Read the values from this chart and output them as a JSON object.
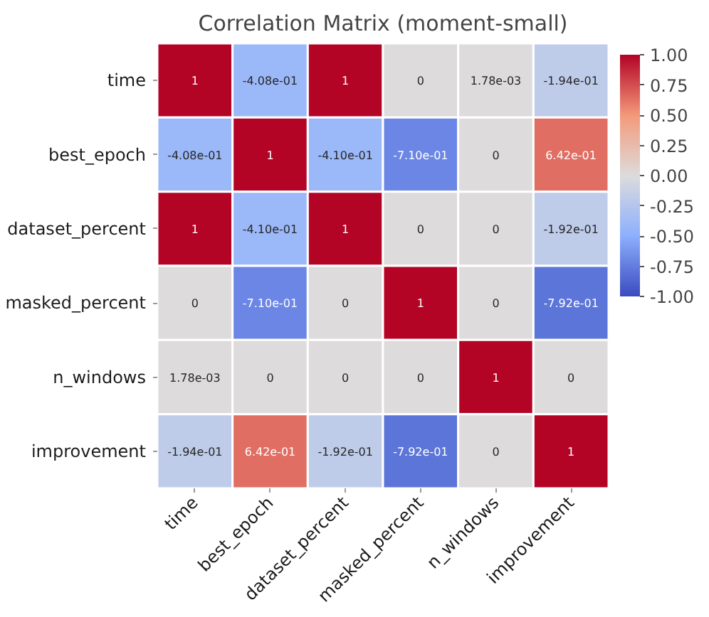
{
  "chart_data": {
    "type": "heatmap",
    "title": "Correlation Matrix (moment-small)",
    "categories": [
      "time",
      "best_epoch",
      "dataset_percent",
      "masked_percent",
      "n_windows",
      "improvement"
    ],
    "y_categories": [
      "time",
      "best_epoch",
      "dataset_percent",
      "masked_percent",
      "n_windows",
      "improvement"
    ],
    "cells": [
      [
        1,
        -0.408,
        1,
        0,
        0.00178,
        -0.194
      ],
      [
        -0.408,
        1,
        -0.41,
        -0.71,
        0,
        0.642
      ],
      [
        1,
        -0.41,
        1,
        0,
        0,
        -0.192
      ],
      [
        0,
        -0.71,
        0,
        1,
        0,
        -0.792
      ],
      [
        0.00178,
        0,
        0,
        0,
        1,
        0
      ],
      [
        -0.194,
        0.642,
        -0.192,
        -0.792,
        0,
        1
      ]
    ],
    "cell_labels": [
      [
        "1",
        "-4.08e-01",
        "1",
        "0",
        "1.78e-03",
        "-1.94e-01"
      ],
      [
        "-4.08e-01",
        "1",
        "-4.10e-01",
        "-7.10e-01",
        "0",
        "6.42e-01"
      ],
      [
        "1",
        "-4.10e-01",
        "1",
        "0",
        "0",
        "-1.92e-01"
      ],
      [
        "0",
        "-7.10e-01",
        "0",
        "1",
        "0",
        "-7.92e-01"
      ],
      [
        "1.78e-03",
        "0",
        "0",
        "0",
        "1",
        "0"
      ],
      [
        "-1.94e-01",
        "6.42e-01",
        "-1.92e-01",
        "-7.92e-01",
        "0",
        "1"
      ]
    ],
    "clim": [
      -1,
      1
    ],
    "cticks": [
      {
        "value": 1,
        "label": "1.00"
      },
      {
        "value": 0.75,
        "label": "0.75"
      },
      {
        "value": 0.5,
        "label": "0.50"
      },
      {
        "value": 0.25,
        "label": "0.25"
      },
      {
        "value": 0,
        "label": "0.00"
      },
      {
        "value": -0.25,
        "label": "-0.25"
      },
      {
        "value": -0.5,
        "label": "-0.50"
      },
      {
        "value": -0.75,
        "label": "-0.75"
      },
      {
        "value": -1,
        "label": "-1.00"
      }
    ]
  }
}
